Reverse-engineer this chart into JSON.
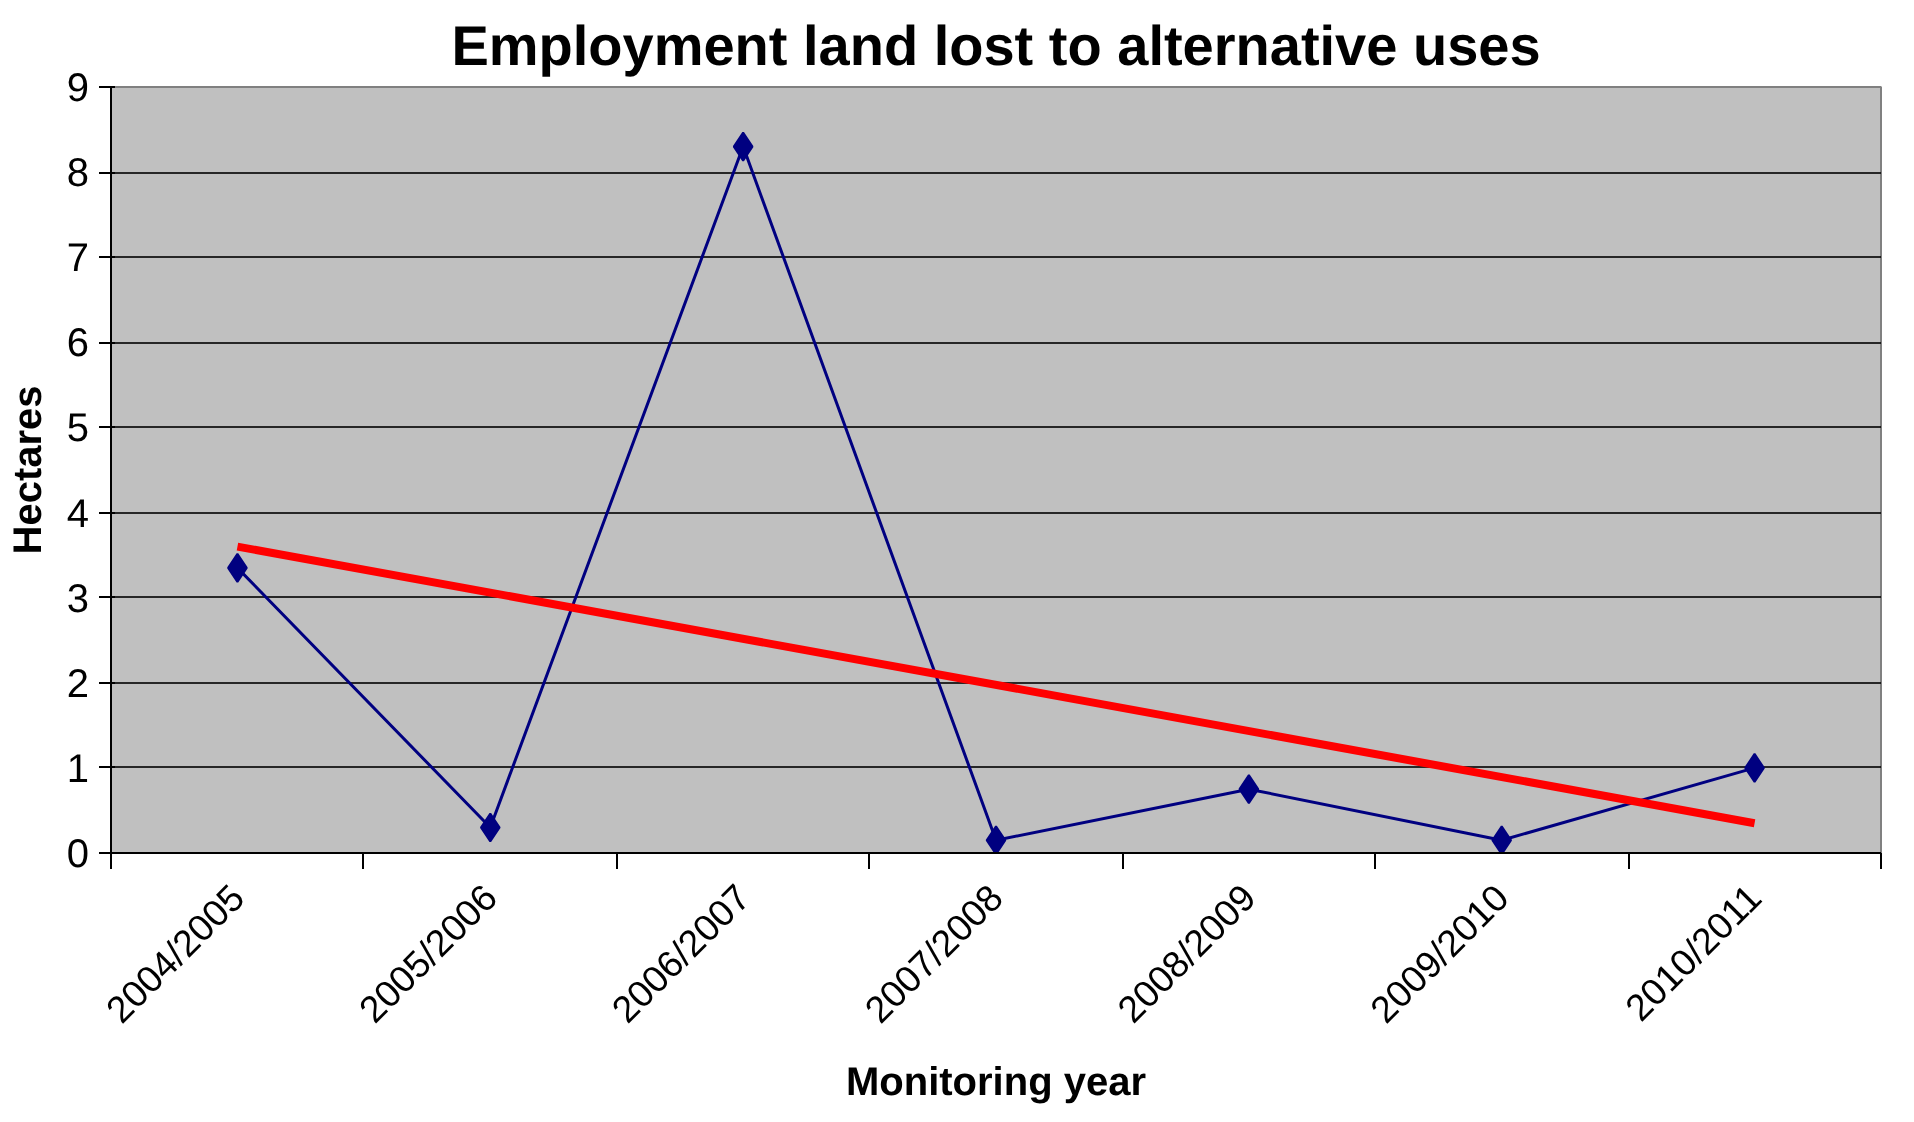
{
  "chart_data": {
    "type": "line",
    "title": "Employment land lost to alternative uses",
    "xlabel": "Monitoring year",
    "ylabel": "Hectares",
    "categories": [
      "2004/2005",
      "2005/2006",
      "2006/2007",
      "2007/2008",
      "2008/2009",
      "2009/2010",
      "2010/2011"
    ],
    "series": [
      {
        "color": "#000080",
        "values": [
          3.35,
          0.3,
          8.3,
          0.15,
          0.75,
          0.15,
          1.0
        ],
        "marker": "diamond"
      },
      {
        "type": "line",
        "color": "#ff0000",
        "x": [
          "2004/2005",
          "2010/2011"
        ],
        "values": [
          3.6,
          0.35
        ],
        "marker": "none"
      }
    ],
    "ylim": [
      0,
      9
    ],
    "yticks": [
      0,
      1,
      2,
      3,
      4,
      5,
      6,
      7,
      8,
      9
    ],
    "grid": "y"
  }
}
